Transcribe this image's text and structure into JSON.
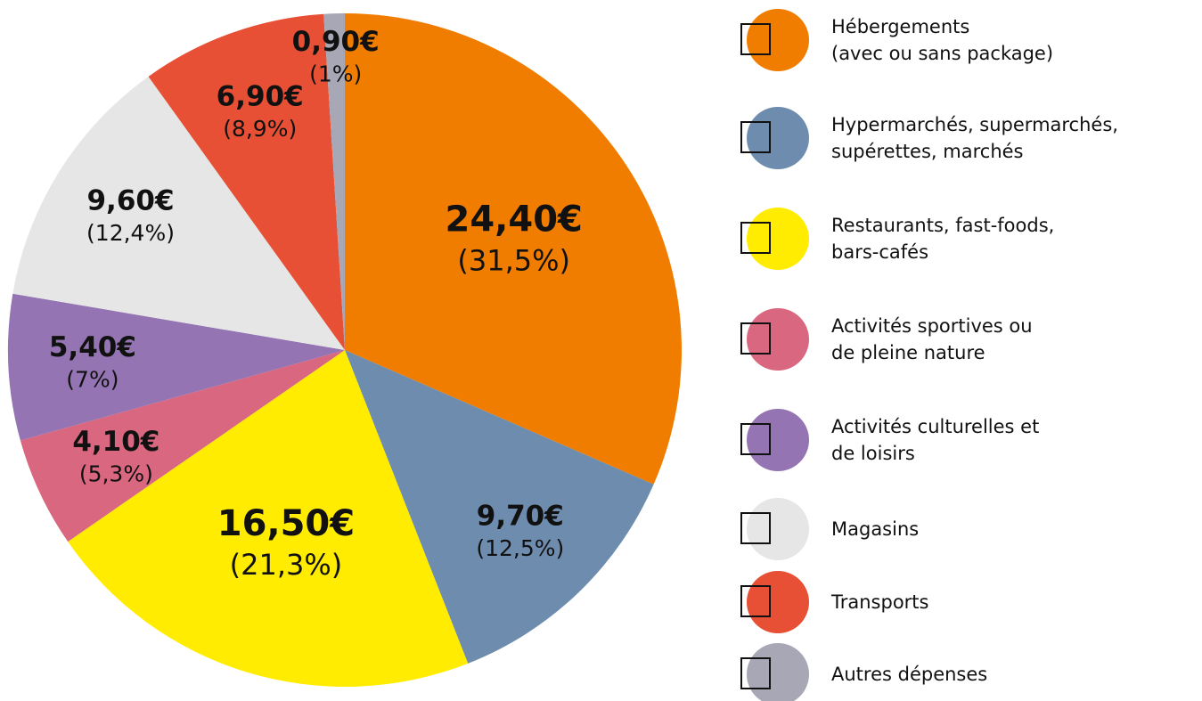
{
  "chart_data": {
    "type": "pie",
    "categories": [
      "Hébergements\n(avec ou sans package)",
      "Hypermarchés, supermarchés,\nsupérettes, marchés",
      "Restaurants, fast-foods,\nbars-cafés",
      "Activités sportives ou\nde pleine nature",
      "Activités culturelles et\nde loisirs",
      "Magasins",
      "Transports",
      "Autres dépenses"
    ],
    "values": [
      31.5,
      12.5,
      21.3,
      5.3,
      7,
      12.4,
      8.9,
      1
    ],
    "value_labels": [
      "(31,5%)",
      "(12,5%)",
      "(21,3%)",
      "(5,3%)",
      "(7%)",
      "(12,4%)",
      "(8,9%)",
      "(1%)"
    ],
    "amounts": [
      24.4,
      9.7,
      16.5,
      4.1,
      5.4,
      9.6,
      6.9,
      0.9
    ],
    "amount_labels": [
      "24,40€",
      "9,70€",
      "16,50€",
      "4,10€",
      "5,40€",
      "9,60€",
      "6,90€",
      "0,90€"
    ],
    "colors": [
      "#f07d00",
      "#6e8cad",
      "#ffec00",
      "#d9677f",
      "#9474b3",
      "#e6e6e6",
      "#e85035",
      "#a7a7b5"
    ]
  }
}
